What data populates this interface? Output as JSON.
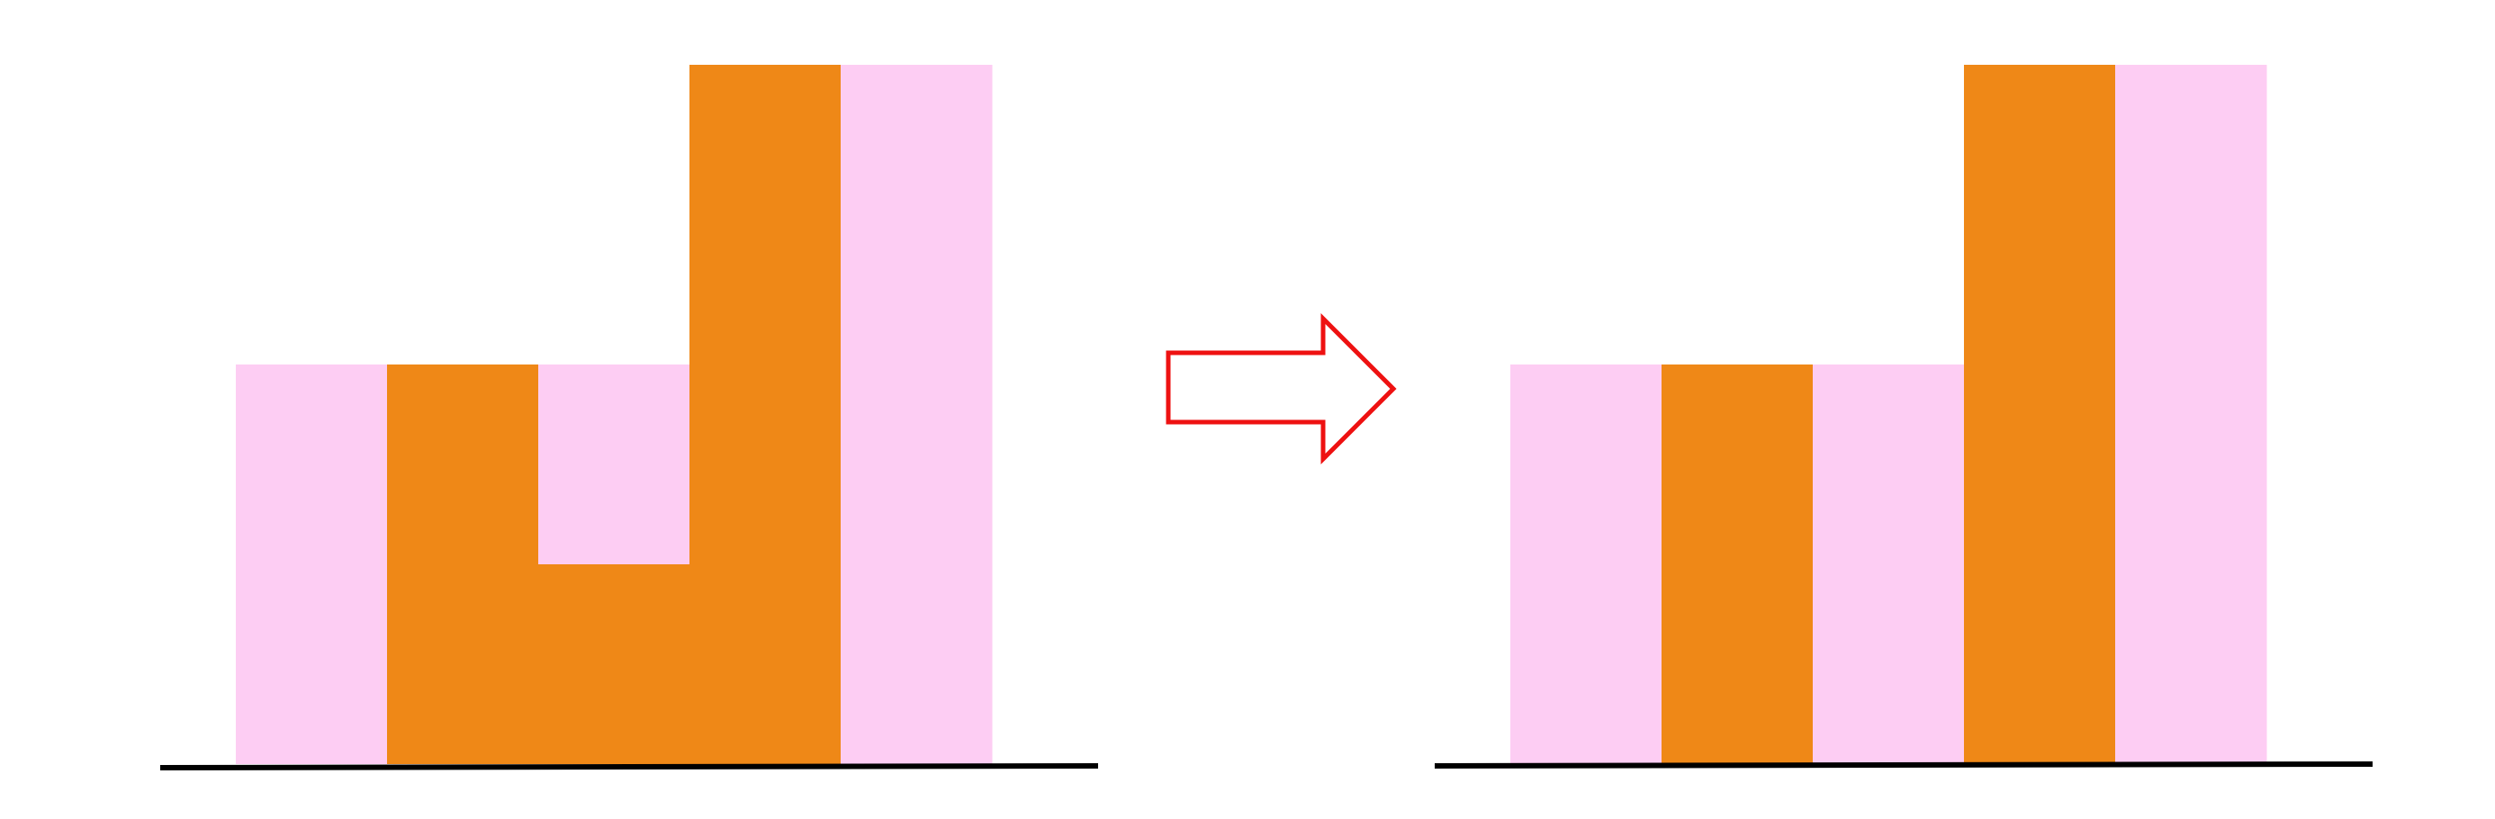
{
  "colors": {
    "background": "#ffffff",
    "pink": "#fdcdf3",
    "orange": "#ef8817",
    "baseline": "#000000",
    "arrow_stroke": "#ee1111",
    "arrow_fill": "#ffffff"
  },
  "arrow": {
    "direction": "right",
    "icon": "hollow-right-arrow-icon"
  },
  "before_diagram": {
    "columns": [
      {
        "height": 4,
        "color": "pink"
      },
      {
        "height": 4,
        "color": "orange"
      },
      {
        "height": 4,
        "color": "mixed",
        "orange_lower": 2,
        "pink_upper": 2
      },
      {
        "height": 7,
        "color": "orange"
      },
      {
        "height": 7,
        "color": "pink"
      }
    ]
  },
  "after_diagram": {
    "columns": [
      {
        "height": 4,
        "color": "pink"
      },
      {
        "height": 4,
        "color": "orange"
      },
      {
        "height": 4,
        "color": "pink"
      },
      {
        "height": 7,
        "color": "orange"
      },
      {
        "height": 7,
        "color": "pink"
      }
    ]
  }
}
